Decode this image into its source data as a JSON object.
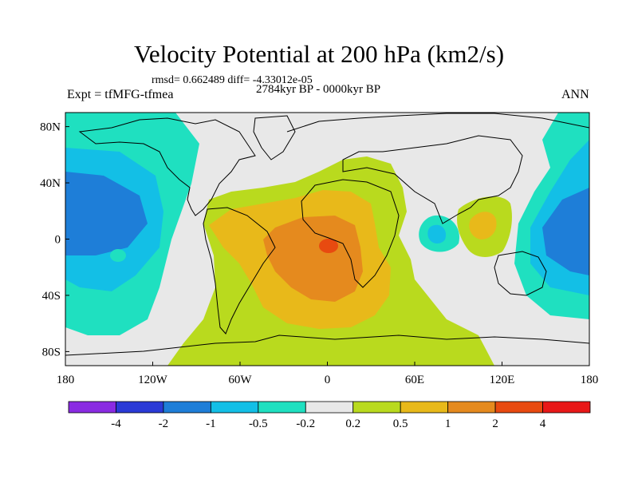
{
  "title": "Velocity Potential at 200 hPa (km2/s)",
  "stats": "rmsd= 0.662489 diff= -4.33012e-05",
  "experiment": "Expt = tfMFG-tfmea",
  "period": "2784kyr BP - 0000kyr BP",
  "season": "ANN",
  "map": {
    "lon_range": [
      -180,
      180
    ],
    "lat_range": [
      -90,
      90
    ],
    "lon_ticks": [
      "180",
      "120W",
      "60W",
      "0",
      "60E",
      "120E",
      "180"
    ],
    "lat_ticks": [
      "80N",
      "40N",
      "0",
      "40S",
      "80S"
    ]
  },
  "colorbar": {
    "labels": [
      "-4",
      "-2",
      "-1",
      "-0.5",
      "-0.2",
      "0.2",
      "0.5",
      "1",
      "2",
      "4"
    ],
    "colors": [
      "#8A2BE2",
      "#2A3AD6",
      "#1E7ED8",
      "#13BFE6",
      "#1FE0C0",
      "#E8E8E8",
      "#B9DA1E",
      "#E8B91A",
      "#E58A1E",
      "#E84A10",
      "#E81818"
    ]
  },
  "colors": {
    "neutral": "#E8E8E8",
    "cyan": "#1FE0C0",
    "skyblue": "#13BFE6",
    "blue": "#1E7ED8",
    "yellowgreen": "#B9DA1E",
    "gold": "#E8B91A",
    "orange": "#E58A1E",
    "redorange": "#E84A10"
  }
}
